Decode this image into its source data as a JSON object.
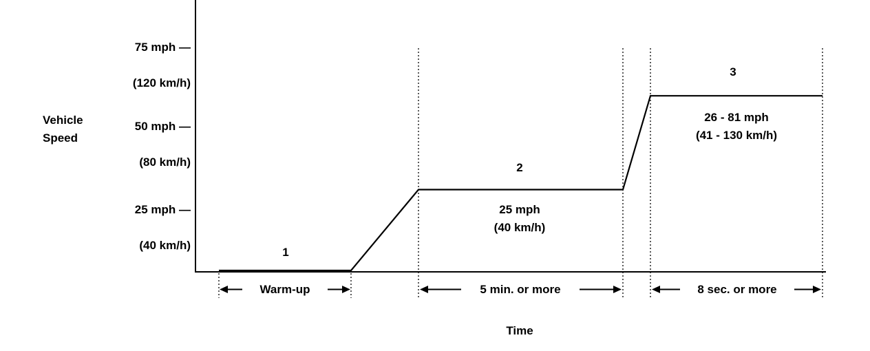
{
  "chart_data": {
    "type": "line",
    "title": "",
    "xlabel": "Time",
    "ylabel": "Vehicle\nSpeed",
    "grid": false,
    "ylim_mph": [
      0,
      80
    ],
    "y_ticks": [
      {
        "label": "75 mph —",
        "sub_label": "(120 km/h)",
        "mph": 75
      },
      {
        "label": "50 mph —",
        "sub_label": "(80 km/h)",
        "mph": 50
      },
      {
        "label": "25 mph —",
        "sub_label": "(40 km/h)",
        "mph": 25
      }
    ],
    "trace": {
      "name": "vehicle-speed-profile",
      "points": [
        {
          "fx": 0.0382,
          "mph": 0
        },
        {
          "fx": 0.2475,
          "mph": 0
        },
        {
          "fx": 0.3544,
          "mph": 25
        },
        {
          "fx": 0.6783,
          "mph": 25
        },
        {
          "fx": 0.7219,
          "mph": 54
        },
        {
          "fx": 0.9945,
          "mph": 54
        }
      ]
    },
    "phases": [
      {
        "number": "1",
        "speed_label": "",
        "duration_label": "Warm-up",
        "plotted_speed_mph": 0
      },
      {
        "number": "2",
        "speed_label": "25 mph\n(40 km/h)",
        "duration_label": "5 min. or more",
        "plotted_speed_mph": 25
      },
      {
        "number": "3",
        "speed_label": "26 - 81 mph\n(41 - 130 km/h)",
        "duration_label": "8 sec. or more",
        "speed_range_mph": [
          26,
          81
        ]
      }
    ],
    "line_color": "#000000"
  }
}
